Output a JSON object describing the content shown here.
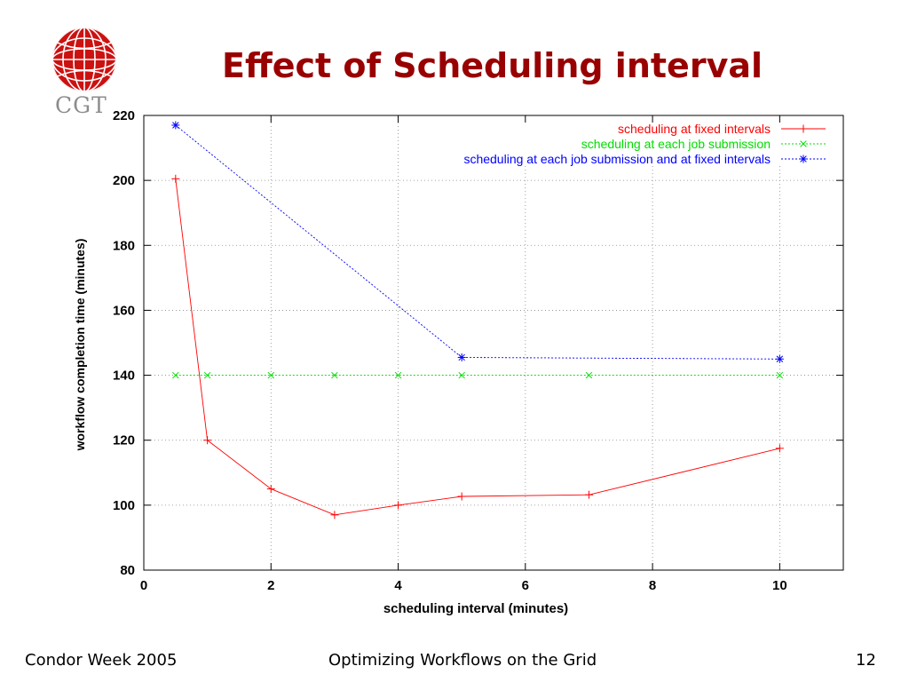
{
  "slide": {
    "title": "Effect of Scheduling interval",
    "logo_text": "CGT",
    "footer_left": "Condor Week 2005",
    "footer_center": "Optimizing Workflows on the Grid",
    "footer_right": "12"
  },
  "chart_data": {
    "type": "line",
    "title": "",
    "xlabel": "scheduling interval (minutes)",
    "ylabel": "workflow completion time (minutes)",
    "xlim": [
      0,
      11
    ],
    "ylim": [
      80,
      220
    ],
    "xticks": [
      0,
      2,
      4,
      6,
      8,
      10
    ],
    "yticks": [
      80,
      100,
      120,
      140,
      160,
      180,
      200,
      220
    ],
    "grid": true,
    "legend_position": "top-right",
    "series": [
      {
        "name": "scheduling at fixed intervals",
        "color": "#ff0000",
        "marker": "+",
        "dash": "solid",
        "x": [
          0.5,
          1,
          2,
          3,
          4,
          5,
          7,
          10
        ],
        "y": [
          200.5,
          120,
          105,
          97,
          100,
          102.7,
          103.2,
          117.5
        ]
      },
      {
        "name": "scheduling at each job submission",
        "color": "#00dd00",
        "marker": "x",
        "dash": "dotted",
        "x": [
          0.5,
          1,
          2,
          3,
          4,
          5,
          7,
          10
        ],
        "y": [
          140,
          140,
          140,
          140,
          140,
          140,
          140,
          140
        ]
      },
      {
        "name": "scheduling at each job submission and at fixed intervals",
        "color": "#0000ff",
        "marker": "*",
        "dash": "dotted",
        "x": [
          0.5,
          5,
          10
        ],
        "y": [
          217,
          145.5,
          145
        ]
      }
    ]
  }
}
